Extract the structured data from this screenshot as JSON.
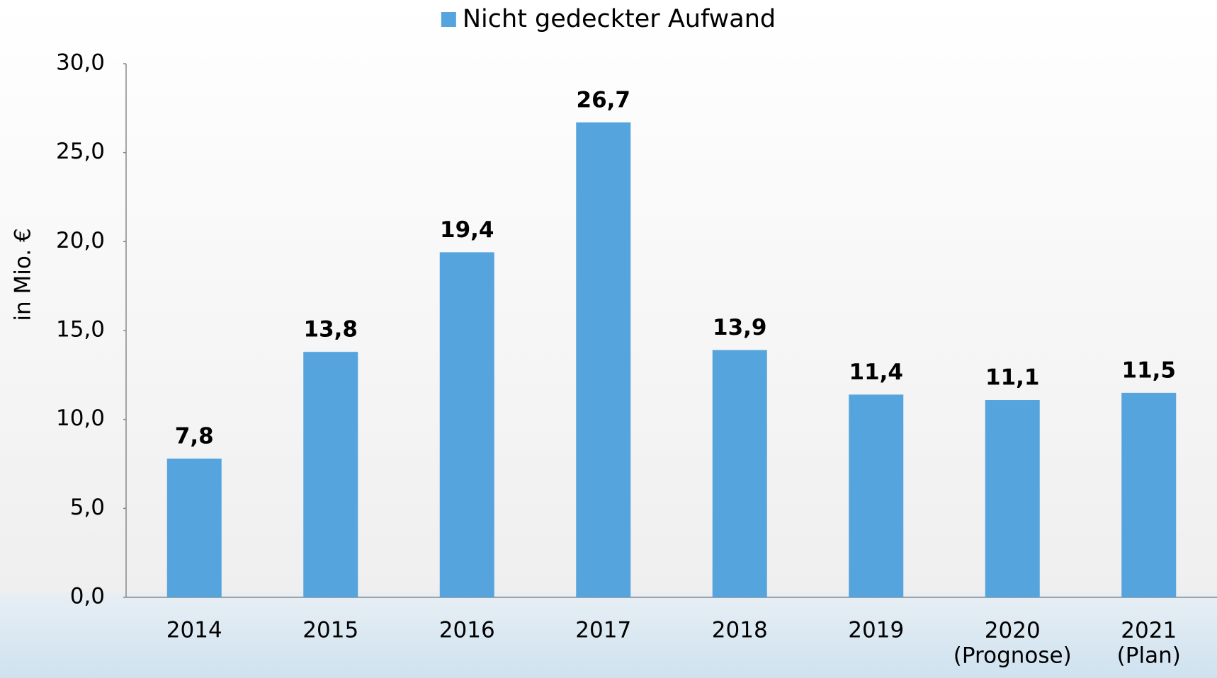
{
  "chart_data": {
    "type": "bar",
    "categories": [
      "2014",
      "2015",
      "2016",
      "2017",
      "2018",
      "2019",
      "2020\n(Prognose)",
      "2021\n(Plan)"
    ],
    "series": [
      {
        "name": "Nicht gedeckter Aufwand",
        "color": "#56a4dd",
        "values": [
          7.8,
          13.8,
          19.4,
          26.7,
          13.9,
          11.4,
          11.1,
          11.5
        ],
        "value_labels": [
          "7,8",
          "13,8",
          "19,4",
          "26,7",
          "13,9",
          "11,4",
          "11,1",
          "11,5"
        ]
      }
    ],
    "ylabel": "in Mio. €",
    "ylim": [
      0,
      30
    ],
    "yticks": [
      {
        "value": 0,
        "label": "0,0"
      },
      {
        "value": 5,
        "label": "5,0"
      },
      {
        "value": 10,
        "label": "10,0"
      },
      {
        "value": 15,
        "label": "15,0"
      },
      {
        "value": 20,
        "label": "20,0"
      },
      {
        "value": 25,
        "label": "25,0"
      },
      {
        "value": 30,
        "label": "30,0"
      }
    ],
    "legend": "top"
  }
}
